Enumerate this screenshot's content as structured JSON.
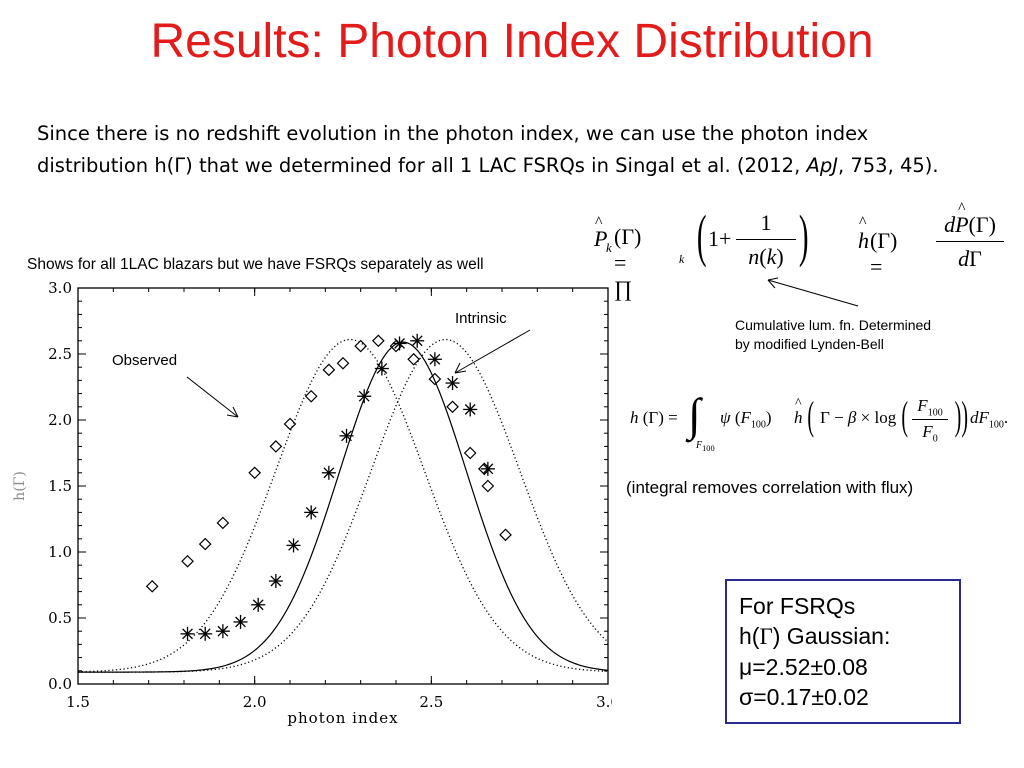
{
  "slide": {
    "title": "Results: Photon Index Distribution",
    "intro_part1": "Since there is no redshift evolution in the photon index, we can use the photon index distribution h(Γ) that we determined for all 1 LAC FSRQs in Singal et al. (2012, ",
    "intro_journal": "ApJ",
    "intro_part2": ", 753, 45).",
    "note": "Shows for all 1LAC blazars but we have FSRQs separately as well",
    "annotation_intrinsic": "Intrinsic",
    "annotation_observed": "Observed",
    "cum_lum_caption_line1": "Cumulative lum. fn. Determined",
    "cum_lum_caption_line2": "by modified Lynden-Bell",
    "integral_caption": "(integral removes correlation with flux)",
    "box_line1": "For FSRQs",
    "box_line2_prefix": "h(",
    "box_line2_gamma": "Γ",
    "box_line2_suffix": ") Gaussian:",
    "box_line3": "μ=2.52±0.08",
    "box_line4": "σ=0.17±0.02",
    "colors": {
      "title": "#e31b1b",
      "box_border": "#2b2b8f"
    }
  },
  "chart_data": {
    "type": "scatter",
    "xlabel": "photon index",
    "ylabel": "h(Γ)",
    "xlim": [
      1.5,
      3.0
    ],
    "ylim": [
      0.0,
      3.0
    ],
    "xticks": [
      "1.5",
      "2.0",
      "2.5",
      "3.0"
    ],
    "yticks": [
      "0.0",
      "0.5",
      "1.0",
      "1.5",
      "2.0",
      "2.5",
      "3.0"
    ],
    "series": [
      {
        "marker": "diamond",
        "x": [
          1.71,
          1.81,
          1.86,
          1.91,
          2.0,
          2.06,
          2.1,
          2.16,
          2.21,
          2.25,
          2.3,
          2.35,
          2.4,
          2.45,
          2.51,
          2.56,
          2.61,
          2.65,
          2.66,
          2.71
        ],
        "y": [
          0.74,
          0.93,
          1.06,
          1.22,
          1.6,
          1.8,
          1.97,
          2.18,
          2.38,
          2.43,
          2.56,
          2.6,
          2.56,
          2.46,
          2.31,
          2.1,
          1.75,
          1.63,
          1.5,
          1.13
        ]
      },
      {
        "marker": "asterisk",
        "x": [
          1.81,
          1.86,
          1.91,
          1.96,
          2.01,
          2.06,
          2.11,
          2.16,
          2.21,
          2.26,
          2.31,
          2.36,
          2.41,
          2.46,
          2.51,
          2.56,
          2.61,
          2.66
        ],
        "y": [
          0.38,
          0.38,
          0.4,
          0.47,
          0.6,
          0.78,
          1.05,
          1.3,
          1.6,
          1.88,
          2.18,
          2.39,
          2.58,
          2.6,
          2.46,
          2.28,
          2.08,
          1.63
        ]
      },
      {
        "style": "solid",
        "curve": "gaussian",
        "mu": 2.42,
        "sigma": 0.18,
        "amplitude": 2.5,
        "baseline": 0.09
      },
      {
        "style": "dotted",
        "curve": "gaussian",
        "mu": 2.27,
        "sigma": 0.21,
        "amplitude": 2.52,
        "baseline": 0.09
      },
      {
        "style": "dotted",
        "curve": "gaussian",
        "mu": 2.54,
        "sigma": 0.21,
        "amplitude": 2.52,
        "baseline": 0.09
      }
    ]
  }
}
